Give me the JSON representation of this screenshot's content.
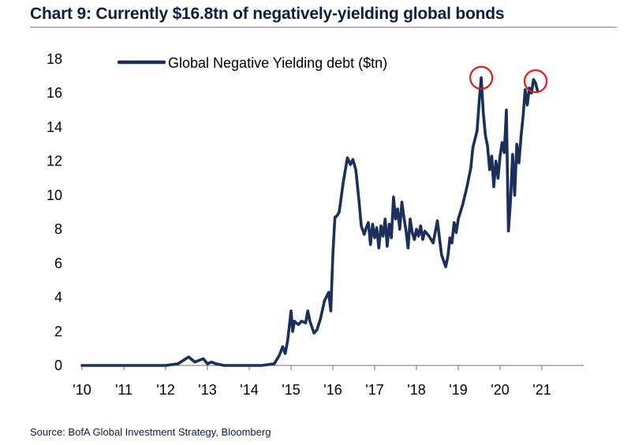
{
  "title": "Chart 9: Currently $16.8tn of negatively-yielding global bonds",
  "source": "Source: BofA Global Investment Strategy, Bloomberg",
  "chart_data": {
    "type": "line",
    "title": "Chart 9: Currently $16.8tn of negatively-yielding global bonds",
    "xlabel": "",
    "ylabel": "",
    "ylim": [
      0,
      18
    ],
    "xlim": [
      2010.0,
      2022.0
    ],
    "y_ticks": [
      "0",
      "2",
      "4",
      "6",
      "8",
      "10",
      "12",
      "14",
      "16",
      "18"
    ],
    "x_ticks": [
      "'10",
      "'11",
      "'12",
      "'13",
      "'14",
      "'15",
      "'16",
      "'17",
      "'18",
      "'19",
      "'20",
      "'21"
    ],
    "grid": false,
    "legend_position": "top-left",
    "colors": {
      "line": "#1b2f5b",
      "highlight": "#e41a1c"
    },
    "series": [
      {
        "name": "Global Negative Yielding debt ($tn)",
        "x": [
          2010.0,
          2010.5,
          2011.0,
          2011.5,
          2012.0,
          2012.3,
          2012.55,
          2012.7,
          2012.9,
          2013.0,
          2013.1,
          2013.2,
          2013.4,
          2013.7,
          2014.0,
          2014.3,
          2014.6,
          2014.72,
          2014.8,
          2014.86,
          2014.92,
          2015.0,
          2015.04,
          2015.08,
          2015.12,
          2015.18,
          2015.25,
          2015.35,
          2015.4,
          2015.45,
          2015.55,
          2015.62,
          2015.7,
          2015.8,
          2015.9,
          2015.95,
          2016.0,
          2016.05,
          2016.1,
          2016.15,
          2016.25,
          2016.35,
          2016.42,
          2016.48,
          2016.55,
          2016.62,
          2016.68,
          2016.75,
          2016.8,
          2016.85,
          2016.9,
          2016.95,
          2017.0,
          2017.05,
          2017.1,
          2017.15,
          2017.2,
          2017.25,
          2017.3,
          2017.35,
          2017.4,
          2017.45,
          2017.5,
          2017.55,
          2017.6,
          2017.65,
          2017.7,
          2017.75,
          2017.8,
          2017.85,
          2017.9,
          2017.95,
          2018.0,
          2018.05,
          2018.1,
          2018.15,
          2018.2,
          2018.3,
          2018.4,
          2018.5,
          2018.6,
          2018.7,
          2018.75,
          2018.8,
          2018.85,
          2018.9,
          2018.95,
          2019.0,
          2019.1,
          2019.2,
          2019.3,
          2019.35,
          2019.45,
          2019.5,
          2019.55,
          2019.6,
          2019.65,
          2019.7,
          2019.75,
          2019.8,
          2019.85,
          2019.9,
          2019.95,
          2020.0,
          2020.05,
          2020.1,
          2020.15,
          2020.2,
          2020.25,
          2020.3,
          2020.35,
          2020.4,
          2020.45,
          2020.5,
          2020.55,
          2020.6,
          2020.65,
          2020.7,
          2020.75,
          2020.8,
          2020.85,
          2020.9
        ],
        "values": [
          0.0,
          0.0,
          0.0,
          0.0,
          0.0,
          0.1,
          0.5,
          0.2,
          0.4,
          0.1,
          0.2,
          0.1,
          0.0,
          0.0,
          0.0,
          0.0,
          0.1,
          0.6,
          1.1,
          0.7,
          1.5,
          3.2,
          2.0,
          2.6,
          2.5,
          2.4,
          2.6,
          2.5,
          3.2,
          2.6,
          1.9,
          2.1,
          2.7,
          3.8,
          4.3,
          3.2,
          6.5,
          8.7,
          8.8,
          9.0,
          10.8,
          12.2,
          11.8,
          12.1,
          11.5,
          9.8,
          8.2,
          7.7,
          8.1,
          8.4,
          7.1,
          8.3,
          7.5,
          8.1,
          6.9,
          8.2,
          7.6,
          8.6,
          7.0,
          8.3,
          7.5,
          9.9,
          8.6,
          9.2,
          8.0,
          9.6,
          8.7,
          7.9,
          6.9,
          8.6,
          7.8,
          7.4,
          8.0,
          7.6,
          8.2,
          7.4,
          7.9,
          7.6,
          7.2,
          8.5,
          6.5,
          5.8,
          6.4,
          7.5,
          7.2,
          8.4,
          7.8,
          8.6,
          9.4,
          10.4,
          11.6,
          12.8,
          13.8,
          15.5,
          16.9,
          14.8,
          13.5,
          12.9,
          11.5,
          12.3,
          10.5,
          12.0,
          11.0,
          12.3,
          13.1,
          12.5,
          15.0,
          7.9,
          9.7,
          12.4,
          10.0,
          13.0,
          11.9,
          13.4,
          14.6,
          16.2,
          15.3,
          16.3,
          16.0,
          16.8,
          16.6,
          16.1
        ]
      }
    ],
    "annotations": [
      {
        "type": "circle",
        "x": 2019.55,
        "y": 16.9
      },
      {
        "type": "circle",
        "x": 2020.85,
        "y": 16.7
      }
    ]
  }
}
